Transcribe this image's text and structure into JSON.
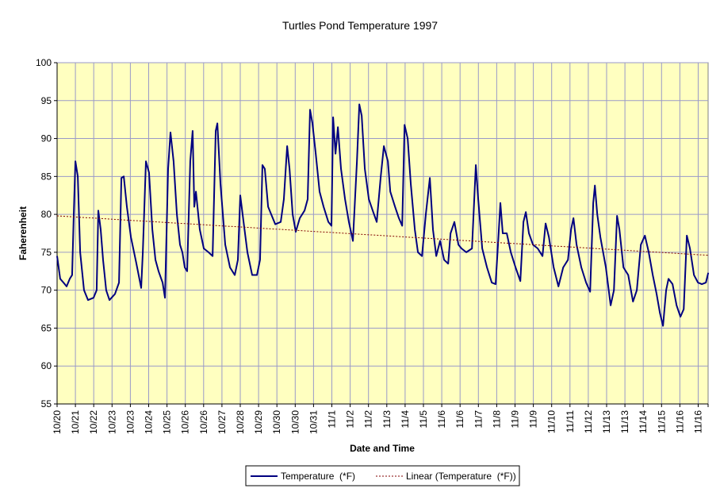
{
  "chart_data": {
    "type": "line",
    "title": "Turtles Pond Temperature 1997",
    "xlabel": "Date and Time",
    "ylabel": "Faherenheit",
    "ylim": [
      55,
      100
    ],
    "yticks": [
      55,
      60,
      65,
      70,
      75,
      80,
      85,
      90,
      95,
      100
    ],
    "grid": true,
    "legend_position": "bottom",
    "categories": [
      "10/20",
      "10/21",
      "10/22",
      "10/23",
      "10/23",
      "10/24",
      "10/25",
      "10/26",
      "10/26",
      "10/27",
      "10/28",
      "10/29",
      "10/30",
      "10/30",
      "10/31",
      "11/1",
      "11/2",
      "11/2",
      "11/3",
      "11/4",
      "11/5",
      "11/6",
      "11/6",
      "11/7",
      "11/8",
      "11/9",
      "11/9",
      "11/10",
      "11/11",
      "11/12",
      "11/13",
      "11/13",
      "11/14",
      "11/15",
      "11/16",
      "11/16"
    ],
    "xlim": [
      0,
      35.55
    ],
    "series": [
      {
        "name": "Temperature  (*F)",
        "color": "#000080",
        "x": [
          0,
          0.17,
          0.35,
          0.52,
          0.69,
          0.82,
          0.91,
          1.0,
          1.13,
          1.26,
          1.47,
          1.69,
          1.99,
          2.16,
          2.25,
          2.38,
          2.51,
          2.68,
          2.86,
          3.16,
          3.38,
          3.51,
          3.64,
          3.81,
          4.03,
          4.33,
          4.59,
          4.68,
          4.85,
          5.02,
          5.2,
          5.37,
          5.54,
          5.76,
          5.89,
          6.06,
          6.19,
          6.36,
          6.54,
          6.71,
          6.84,
          6.97,
          7.1,
          7.27,
          7.4,
          7.49,
          7.58,
          7.79,
          8.01,
          8.27,
          8.49,
          8.66,
          8.75,
          8.92,
          9.18,
          9.44,
          9.7,
          9.87,
          10.0,
          10.18,
          10.39,
          10.65,
          10.91,
          11.08,
          11.21,
          11.34,
          11.52,
          11.69,
          11.91,
          12.21,
          12.38,
          12.56,
          12.69,
          12.86,
          13.03,
          13.25,
          13.51,
          13.68,
          13.81,
          13.94,
          14.12,
          14.33,
          14.55,
          14.81,
          14.98,
          15.07,
          15.2,
          15.33,
          15.5,
          15.72,
          15.93,
          16.15,
          16.37,
          16.5,
          16.63,
          16.8,
          17.02,
          17.23,
          17.45,
          17.67,
          17.84,
          18.06,
          18.19,
          18.45,
          18.66,
          18.84,
          18.97,
          19.14,
          19.31,
          19.53,
          19.7,
          19.92,
          20.13,
          20.35,
          20.52,
          20.7,
          20.91,
          21.13,
          21.35,
          21.48,
          21.69,
          21.91,
          22.08,
          22.34,
          22.65,
          22.86,
          22.99,
          23.21,
          23.47,
          23.73,
          23.94,
          24.07,
          24.2,
          24.33,
          24.55,
          24.77,
          25.03,
          25.29,
          25.46,
          25.59,
          25.76,
          25.98,
          26.24,
          26.5,
          26.67,
          26.85,
          27.11,
          27.37,
          27.63,
          27.89,
          28.06,
          28.19,
          28.36,
          28.62,
          28.88,
          29.1,
          29.27,
          29.36,
          29.49,
          29.66,
          29.96,
          30.22,
          30.4,
          30.57,
          30.7,
          30.92,
          31.18,
          31.44,
          31.65,
          31.87,
          32.09,
          32.3,
          32.52,
          32.73,
          32.91,
          33.08,
          33.25,
          33.38,
          33.6,
          33.82,
          34.03,
          34.21,
          34.38,
          34.55,
          34.77,
          34.99,
          35.2,
          35.42,
          35.55
        ],
        "y": [
          74.5,
          71.5,
          71,
          70.5,
          71.5,
          72,
          80,
          87,
          85,
          75,
          70,
          68.7,
          69,
          70,
          80.5,
          78,
          74,
          70,
          68.7,
          69.5,
          71,
          84.8,
          85,
          81,
          77,
          73.5,
          70.3,
          75,
          87,
          85.5,
          78,
          74,
          72.5,
          71,
          69,
          86,
          90.8,
          87,
          80,
          76,
          75,
          73,
          72.5,
          87,
          91,
          81,
          83,
          78,
          75.5,
          75,
          74.5,
          91,
          92,
          84,
          76,
          73,
          72,
          74,
          82.5,
          79,
          75,
          72,
          72,
          74,
          86.5,
          86,
          81,
          80,
          78.7,
          79,
          82,
          89,
          86,
          80,
          77.7,
          79.5,
          80.5,
          82,
          93.8,
          92,
          88,
          83,
          81,
          79,
          78.5,
          92.8,
          88,
          91.5,
          86,
          82,
          79,
          76.5,
          87,
          94.5,
          93,
          86,
          82,
          80.5,
          79,
          85,
          89,
          87,
          83,
          81,
          79.5,
          78.5,
          91.8,
          90,
          84,
          78,
          75,
          74.5,
          80,
          84.8,
          78,
          74.5,
          76.5,
          74,
          73.5,
          77.5,
          79,
          76,
          75.5,
          75,
          75.5,
          86.5,
          82,
          75.5,
          73,
          71,
          70.8,
          76,
          81.5,
          77.5,
          77.5,
          75,
          73,
          71.2,
          79,
          80.3,
          77.5,
          76,
          75.5,
          74.5,
          78.8,
          77,
          73,
          70.5,
          73,
          74,
          78,
          79.5,
          76,
          73,
          71,
          69.8,
          81.5,
          83.8,
          80,
          77,
          73,
          68,
          70,
          79.8,
          78,
          73,
          72,
          68.5,
          70,
          76,
          77.2,
          75,
          72,
          69.5,
          67,
          65.3,
          70,
          71.5,
          70.8,
          68,
          66.5,
          67.5,
          77.2,
          75.5,
          72,
          71,
          70.8,
          71,
          72.3
        ]
      },
      {
        "name": "Linear (Temperature  (*F))",
        "color": "#800000",
        "x": [
          0,
          35.55
        ],
        "y": [
          79.8,
          74.6
        ]
      }
    ]
  }
}
